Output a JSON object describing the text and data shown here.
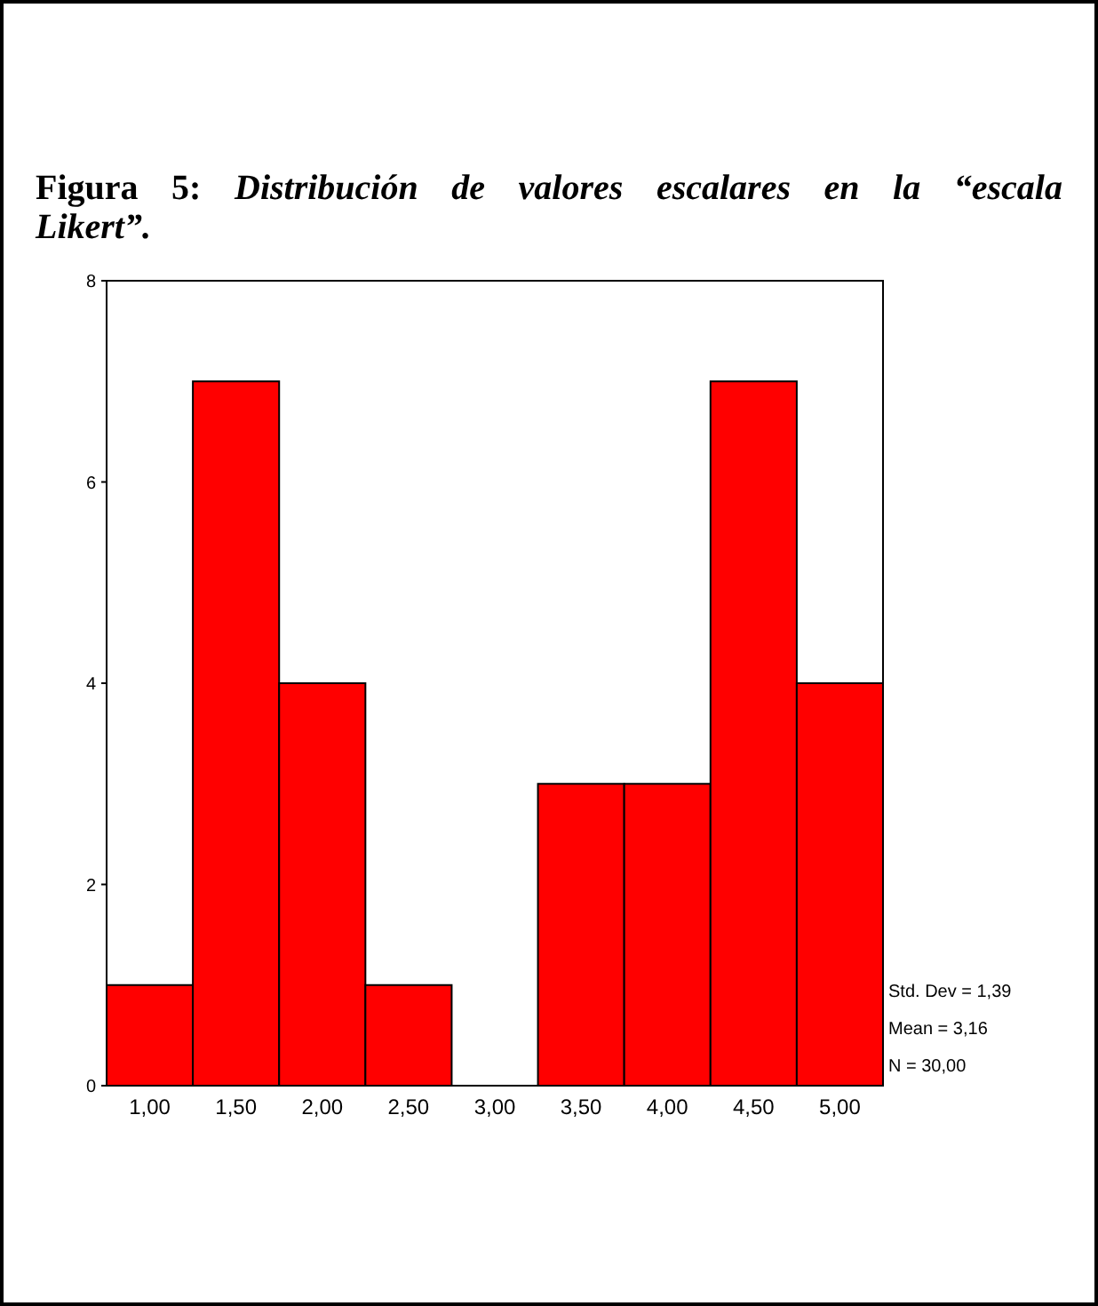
{
  "chart_data": {
    "type": "histogram",
    "title": "Figura 5: Distribución de valores escalares en la “escala Likert”.",
    "bins": [
      0.75,
      1.25,
      1.75,
      2.25,
      2.75,
      3.25,
      3.75,
      4.25,
      4.75,
      5.25
    ],
    "values": [
      1,
      7,
      4,
      1,
      0,
      3,
      3,
      7,
      4
    ],
    "color": "#ff0000",
    "xlim": [
      0.75,
      5.25
    ],
    "xticks": [
      {
        "value": 1,
        "label": "1,00"
      },
      {
        "value": 1.5,
        "label": "1,50"
      },
      {
        "value": 2,
        "label": "2,00"
      },
      {
        "value": 2.5,
        "label": "2,50"
      },
      {
        "value": 3,
        "label": "3,00"
      },
      {
        "value": 3.5,
        "label": "3,50"
      },
      {
        "value": 4,
        "label": "4,00"
      },
      {
        "value": 4.5,
        "label": "4,50"
      },
      {
        "value": 5,
        "label": "5,00"
      }
    ],
    "ylim": [
      0,
      8
    ],
    "yticks": [
      0,
      2,
      4,
      6,
      8
    ],
    "grid": false,
    "annotations": [
      "Std. Dev = 1,39",
      "Mean = 3,16",
      "N = 30,00"
    ]
  }
}
